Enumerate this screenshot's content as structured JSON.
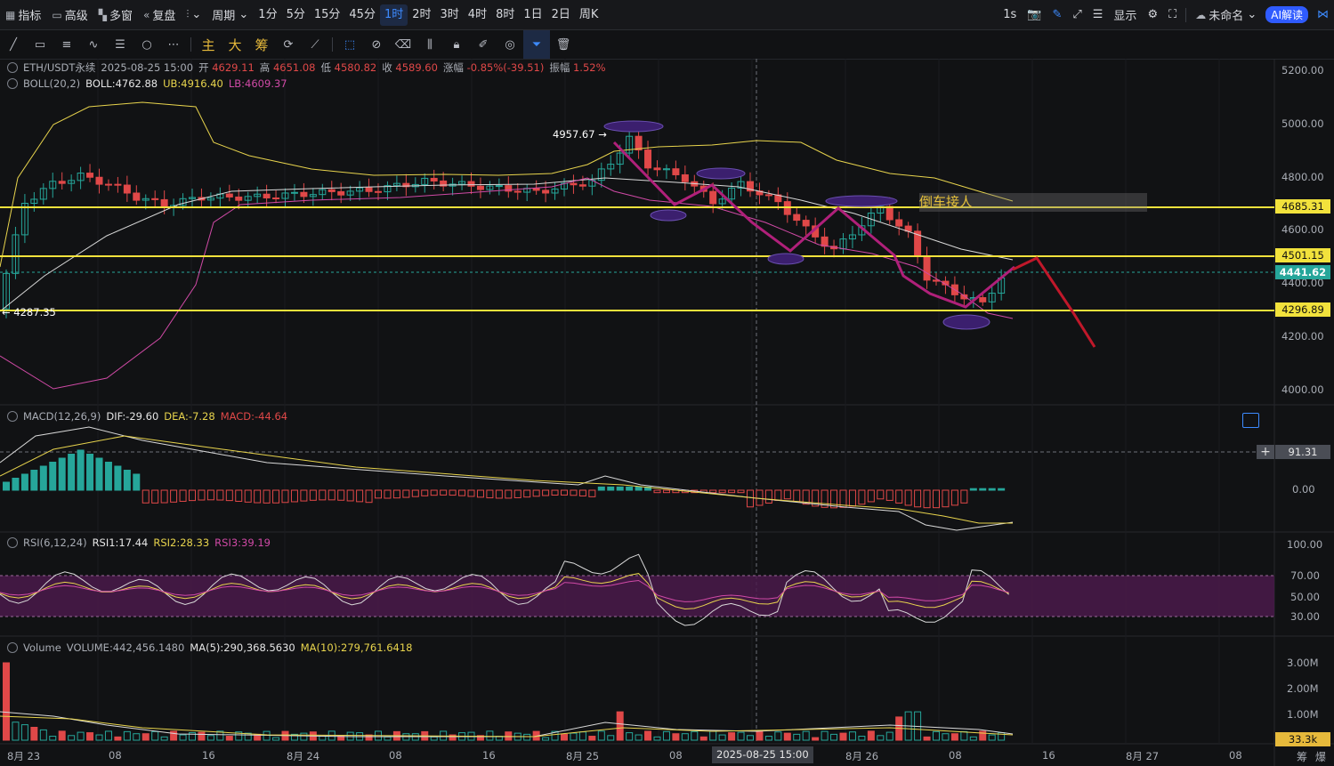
{
  "topbar": {
    "indicators": "指标",
    "advanced": "高级",
    "multiwindow": "多窗",
    "replay": "复盘",
    "period": "周期",
    "timeframes": [
      "1分",
      "5分",
      "15分",
      "45分",
      "1时",
      "2时",
      "3时",
      "4时",
      "8时",
      "1日",
      "2日",
      "周K"
    ],
    "active_timeframe": "1时",
    "refresh": "1s",
    "display": "显示",
    "unnamed": "未命名",
    "ai": "AI解读"
  },
  "tools": {
    "main": "主",
    "big": "大",
    "chips": "筹"
  },
  "legend": {
    "symbol": "ETH/USDT永续",
    "date": "2025-08-25 15:00",
    "open_label": "开",
    "open": "4629.11",
    "high_label": "高",
    "high": "4651.08",
    "low_label": "低",
    "low": "4580.82",
    "close_label": "收",
    "close": "4589.60",
    "change_label": "涨幅",
    "change": "-0.85%(-39.51)",
    "amp_label": "振幅",
    "amp": "1.52%",
    "boll_name": "BOLL(20,2)",
    "boll": "BOLL:4762.88",
    "ub": "UB:4916.40",
    "lb": "LB:4609.37",
    "macd_name": "MACD(12,26,9)",
    "dif": "DIF:-29.60",
    "dea": "DEA:-7.28",
    "macd": "MACD:-44.64",
    "rsi_name": "RSI(6,12,24)",
    "rsi1": "RSI1:17.44",
    "rsi2": "RSI2:28.33",
    "rsi3": "RSI3:39.19",
    "vol_name": "Volume",
    "vol": "VOLUME:442,456.1480",
    "ma5": "MA(5):290,368.5630",
    "ma10": "MA(10):279,761.6418"
  },
  "annotations": {
    "high_mark": "4957.67",
    "low_mark": "4287.35",
    "note": "倒车接人"
  },
  "price_axis": [
    "5200.00",
    "5000.00",
    "4800.00",
    "4600.00",
    "4400.00",
    "4200.00",
    "4000.00"
  ],
  "price_tags": {
    "resistance1": "4685.31",
    "resistance2": "4501.15",
    "current": "4441.62",
    "support": "4296.89"
  },
  "macd_axis": {
    "crosshair": "91.31",
    "zero": "0.00"
  },
  "rsi_axis": [
    "100.00",
    "70.00",
    "50.00",
    "30.00"
  ],
  "vol_axis": [
    "3.00M",
    "2.00M",
    "1.00M"
  ],
  "vol_tag": "33.3k",
  "x_axis": [
    "8月 23",
    "08",
    "16",
    "8月 24",
    "08",
    "16",
    "8月 25",
    "08",
    "2025-08-25 15:00",
    "8月 26",
    "08",
    "16",
    "8月 27",
    "08"
  ],
  "bottom_right": [
    "筹",
    "爆"
  ],
  "colors": {
    "up": "#26a69a",
    "down": "#e04848",
    "boll_ub": "#e8d44d",
    "boll_mid": "#d9d9d9",
    "boll_lb": "#d04aa6",
    "level": "#f2e23c",
    "zigzag": "#b0207a",
    "forecast": "#c0182a"
  }
}
